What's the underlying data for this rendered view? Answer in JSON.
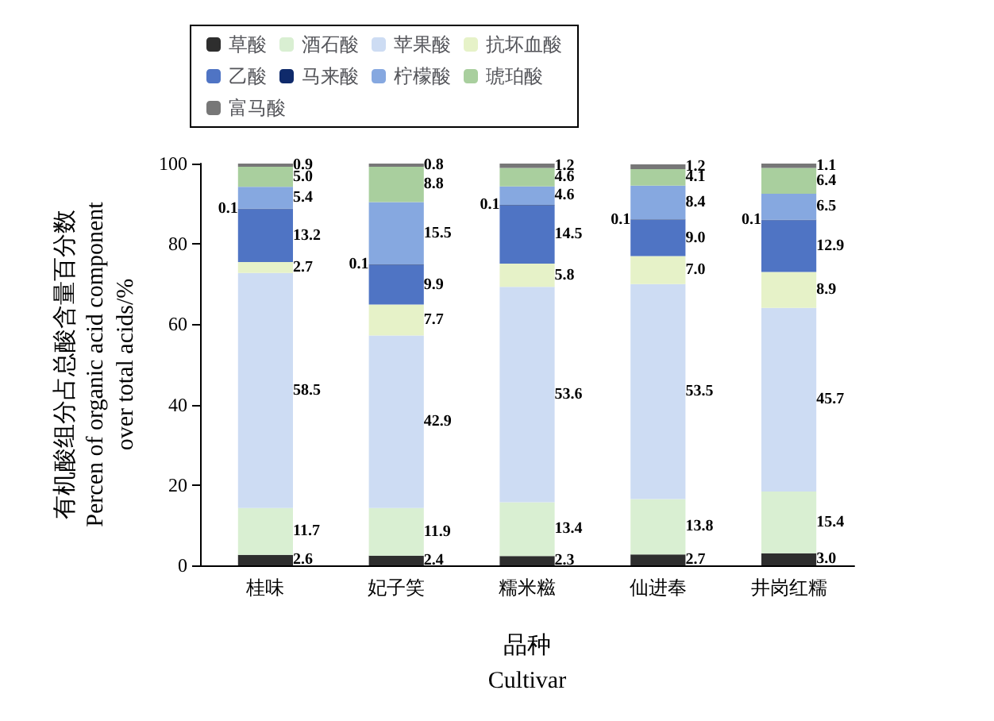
{
  "chart_data": {
    "type": "bar",
    "stacked": true,
    "xlabel": "品种\nCultivar",
    "ylabel": "有机酸组分占总酸含量百分数\nPercen of organic acid component\nover total acids/%",
    "categories": [
      "桂味",
      "妃子笑",
      "糯米糍",
      "仙进奉",
      "井岗红糯"
    ],
    "ylim": [
      0,
      100
    ],
    "yticks": [
      0,
      20,
      40,
      60,
      80,
      100
    ],
    "grid": false,
    "legend": "top left",
    "series": [
      {
        "name": "草酸",
        "color": "#2e2e2e",
        "values": [
          2.6,
          2.4,
          2.3,
          2.7,
          3.0
        ],
        "value_labels": [
          "2.6",
          "2.4",
          "2.3",
          "2.7",
          "3.0"
        ]
      },
      {
        "name": "酒石酸",
        "color": "#d9efd2",
        "values": [
          11.7,
          11.9,
          13.4,
          13.8,
          15.4
        ],
        "value_labels": [
          "11.7",
          "11.9",
          "13.4",
          "13.8",
          "15.4"
        ]
      },
      {
        "name": "苹果酸",
        "color": "#cddcf3",
        "values": [
          58.5,
          42.9,
          53.6,
          53.5,
          45.7
        ],
        "value_labels": [
          "58.5",
          "42.9",
          "53.6",
          "53.5",
          "45.7"
        ]
      },
      {
        "name": "抗坏血酸",
        "color": "#e6f2c8",
        "values": [
          2.7,
          7.7,
          5.8,
          7.0,
          8.9
        ],
        "value_labels": [
          "2.7",
          "7.7",
          "5.8",
          "7.0",
          "8.9"
        ]
      },
      {
        "name": "乙酸",
        "color": "#4f74c4",
        "values": [
          13.2,
          9.9,
          14.5,
          9.0,
          12.9
        ],
        "value_labels": [
          "13.2",
          "9.9",
          "14.5",
          "9.0",
          "12.9"
        ]
      },
      {
        "name": "马来酸",
        "color": "#0f2a6b",
        "values": [
          0.1,
          0.1,
          0.1,
          0.1,
          0.1
        ],
        "value_labels": [
          "0.1",
          "0.1",
          "0.1",
          "0.1",
          "0.1"
        ]
      },
      {
        "name": "柠檬酸",
        "color": "#86a8e0",
        "values": [
          5.4,
          15.5,
          4.6,
          8.4,
          6.5
        ],
        "value_labels": [
          "5.4",
          "15.5",
          "4.6",
          "8.4",
          "6.5"
        ]
      },
      {
        "name": "琥珀酸",
        "color": "#a9cf9e",
        "values": [
          5.0,
          8.8,
          4.6,
          4.1,
          6.4
        ],
        "value_labels": [
          "5.0",
          "8.8",
          "4.6",
          "4.1",
          "6.4"
        ]
      },
      {
        "name": "富马酸",
        "color": "#777777",
        "values": [
          0.9,
          0.8,
          1.2,
          1.2,
          1.1
        ],
        "value_labels": [
          "0.9",
          "0.8",
          "1.2",
          "1.2",
          "1.1"
        ]
      }
    ]
  }
}
